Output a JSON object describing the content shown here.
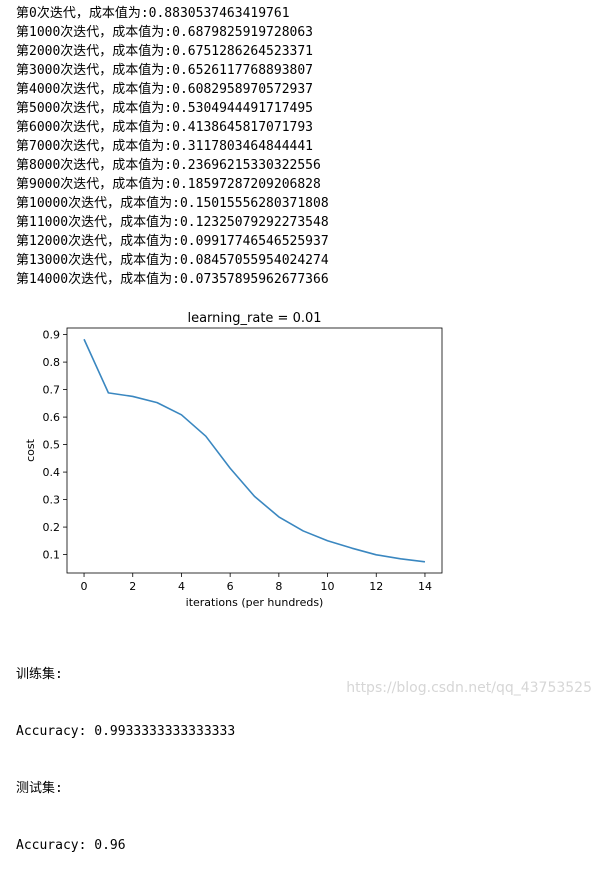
{
  "output_log": [
    "第0次迭代，成本值为:0.8830537463419761",
    "第1000次迭代，成本值为:0.6879825919728063",
    "第2000次迭代，成本值为:0.6751286264523371",
    "第3000次迭代，成本值为:0.6526117768893807",
    "第4000次迭代，成本值为:0.6082958970572937",
    "第5000次迭代，成本值为:0.5304944491717495",
    "第6000次迭代，成本值为:0.4138645817071793",
    "第7000次迭代，成本值为:0.3117803464844441",
    "第8000次迭代，成本值为:0.23696215330322556",
    "第9000次迭代，成本值为:0.18597287209206828",
    "第10000次迭代，成本值为:0.15015556280371808",
    "第11000次迭代，成本值为:0.12325079292273548",
    "第12000次迭代，成本值为:0.09917746546525937",
    "第13000次迭代，成本值为:0.08457055954024274",
    "第14000次迭代，成本值为:0.07357895962677366"
  ],
  "chart_data": {
    "type": "line",
    "title": "learning_rate = 0.01",
    "xlabel": "iterations (per hundreds)",
    "ylabel": "cost",
    "x": [
      0,
      1,
      2,
      3,
      4,
      5,
      6,
      7,
      8,
      9,
      10,
      11,
      12,
      13,
      14
    ],
    "y": [
      0.8831,
      0.688,
      0.6751,
      0.6526,
      0.6083,
      0.5305,
      0.4139,
      0.3118,
      0.237,
      0.186,
      0.1502,
      0.1233,
      0.0992,
      0.0846,
      0.0736
    ],
    "xlim": [
      -0.7,
      14.7
    ],
    "ylim": [
      0.033,
      0.924
    ],
    "x_ticks": [
      "0",
      "2",
      "4",
      "6",
      "8",
      "10",
      "12",
      "14"
    ],
    "y_ticks": [
      "0.1",
      "0.2",
      "0.3",
      "0.4",
      "0.5",
      "0.6",
      "0.7",
      "0.8",
      "0.9"
    ],
    "line_color": "#3a87c0",
    "grid": false,
    "legend": "none"
  },
  "results": {
    "train_label": "训练集:",
    "train_accuracy": "Accuracy: 0.9933333333333333",
    "test_label": "测试集:",
    "test_accuracy": "Accuracy: 0.96"
  },
  "watermark": "https://blog.csdn.net/qq_43753525"
}
